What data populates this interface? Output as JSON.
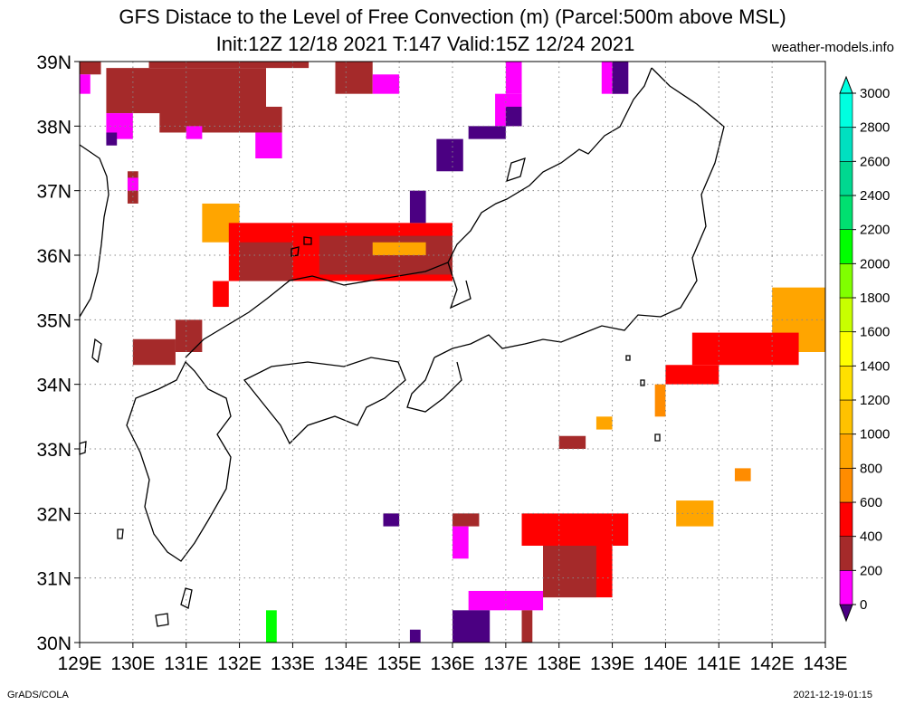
{
  "header": {
    "title": "GFS Distace to the Level of Free Convection (m) (Parcel:500m above MSL)",
    "subtitle": "Init:12Z 12/18 2021 T:147 Valid:15Z 12/24 2021",
    "site": "weather-models.info"
  },
  "footer": {
    "left": "GrADS/COLA",
    "right": "2021-12-19-01:15"
  },
  "chart_data": {
    "type": "heatmap",
    "lon_range": [
      129,
      143
    ],
    "lat_range": [
      30,
      39
    ],
    "grid": true,
    "x_ticks": [
      "129E",
      "130E",
      "131E",
      "132E",
      "133E",
      "134E",
      "135E",
      "136E",
      "137E",
      "138E",
      "139E",
      "140E",
      "141E",
      "142E",
      "143E"
    ],
    "y_ticks": [
      "30N",
      "31N",
      "32N",
      "33N",
      "34N",
      "35N",
      "36N",
      "37N",
      "38N",
      "39N"
    ],
    "colorbar": {
      "levels": [
        0,
        200,
        400,
        600,
        800,
        1000,
        1200,
        1400,
        1600,
        1800,
        2000,
        2200,
        2400,
        2600,
        2800,
        3000
      ],
      "labels": [
        "0",
        "200",
        "400",
        "600",
        "800",
        "1000",
        "1200",
        "1400",
        "1600",
        "1800",
        "2000",
        "2200",
        "2400",
        "2600",
        "2800",
        "3000"
      ],
      "colors": [
        "#4b0082",
        "#ff00ff",
        "#a52a2a",
        "#ff0000",
        "#ff8c00",
        "#ffa500",
        "#ffc200",
        "#ffe000",
        "#ffff00",
        "#c8ff00",
        "#80ff00",
        "#00ff00",
        "#00e070",
        "#00d890",
        "#00e0c0",
        "#00ffe0"
      ],
      "placement": "right"
    },
    "regions": [
      {
        "lon": [
          129.0,
          129.4
        ],
        "lat": [
          38.8,
          39.0
        ],
        "color": "#a52a2a"
      },
      {
        "lon": [
          129.0,
          129.2
        ],
        "lat": [
          38.5,
          38.8
        ],
        "color": "#ff00ff"
      },
      {
        "lon": [
          129.5,
          132.5
        ],
        "lat": [
          38.2,
          38.9
        ],
        "color": "#a52a2a"
      },
      {
        "lon": [
          130.3,
          133.3
        ],
        "lat": [
          38.9,
          39.0
        ],
        "color": "#a52a2a"
      },
      {
        "lon": [
          130.5,
          132.8
        ],
        "lat": [
          37.9,
          38.3
        ],
        "color": "#a52a2a"
      },
      {
        "lon": [
          129.5,
          130.0
        ],
        "lat": [
          37.8,
          38.2
        ],
        "color": "#ff00ff"
      },
      {
        "lon": [
          129.5,
          129.7
        ],
        "lat": [
          37.7,
          37.9
        ],
        "color": "#4b0082"
      },
      {
        "lon": [
          132.3,
          132.8
        ],
        "lat": [
          37.5,
          37.9
        ],
        "color": "#ff00ff"
      },
      {
        "lon": [
          131.0,
          131.3
        ],
        "lat": [
          37.8,
          38.0
        ],
        "color": "#ff00ff"
      },
      {
        "lon": [
          133.8,
          134.5
        ],
        "lat": [
          38.5,
          39.0
        ],
        "color": "#a52a2a"
      },
      {
        "lon": [
          134.5,
          135.0
        ],
        "lat": [
          38.5,
          38.8
        ],
        "color": "#ff00ff"
      },
      {
        "lon": [
          136.8,
          137.3
        ],
        "lat": [
          38.0,
          38.5
        ],
        "color": "#ff00ff"
      },
      {
        "lon": [
          137.0,
          137.3
        ],
        "lat": [
          38.0,
          38.3
        ],
        "color": "#4b0082"
      },
      {
        "lon": [
          137.0,
          137.3
        ],
        "lat": [
          38.5,
          39.0
        ],
        "color": "#ff00ff"
      },
      {
        "lon": [
          138.8,
          139.3
        ],
        "lat": [
          38.5,
          39.0
        ],
        "color": "#ff00ff"
      },
      {
        "lon": [
          139.0,
          139.3
        ],
        "lat": [
          38.5,
          39.0
        ],
        "color": "#4b0082"
      },
      {
        "lon": [
          136.3,
          137.0
        ],
        "lat": [
          37.8,
          38.0
        ],
        "color": "#4b0082"
      },
      {
        "lon": [
          135.7,
          136.2
        ],
        "lat": [
          37.3,
          37.8
        ],
        "color": "#4b0082"
      },
      {
        "lon": [
          129.9,
          130.1
        ],
        "lat": [
          36.8,
          37.3
        ],
        "color": "#a52a2a"
      },
      {
        "lon": [
          129.9,
          130.1
        ],
        "lat": [
          37.0,
          37.2
        ],
        "color": "#ff00ff"
      },
      {
        "lon": [
          131.3,
          132.0
        ],
        "lat": [
          36.2,
          36.8
        ],
        "color": "#ffa500"
      },
      {
        "lon": [
          131.8,
          136.0
        ],
        "lat": [
          35.6,
          36.5
        ],
        "color": "#ff0000"
      },
      {
        "lon": [
          132.0,
          133.0
        ],
        "lat": [
          35.6,
          36.2
        ],
        "color": "#a52a2a"
      },
      {
        "lon": [
          133.5,
          136.0
        ],
        "lat": [
          35.7,
          36.3
        ],
        "color": "#a52a2a"
      },
      {
        "lon": [
          134.5,
          135.5
        ],
        "lat": [
          36.0,
          36.2
        ],
        "color": "#ffa500"
      },
      {
        "lon": [
          135.2,
          135.5
        ],
        "lat": [
          36.5,
          37.0
        ],
        "color": "#4b0082"
      },
      {
        "lon": [
          131.5,
          131.8
        ],
        "lat": [
          35.2,
          35.6
        ],
        "color": "#ff0000"
      },
      {
        "lon": [
          130.0,
          130.8
        ],
        "lat": [
          34.3,
          34.7
        ],
        "color": "#a52a2a"
      },
      {
        "lon": [
          130.8,
          131.3
        ],
        "lat": [
          34.5,
          35.0
        ],
        "color": "#a52a2a"
      },
      {
        "lon": [
          142.0,
          143.0
        ],
        "lat": [
          34.5,
          35.5
        ],
        "color": "#ffa500"
      },
      {
        "lon": [
          140.5,
          142.5
        ],
        "lat": [
          34.3,
          34.8
        ],
        "color": "#ff0000"
      },
      {
        "lon": [
          140.0,
          141.0
        ],
        "lat": [
          34.0,
          34.3
        ],
        "color": "#ff0000"
      },
      {
        "lon": [
          139.8,
          140.0
        ],
        "lat": [
          33.5,
          34.0
        ],
        "color": "#ff8c00"
      },
      {
        "lon": [
          138.0,
          138.5
        ],
        "lat": [
          33.0,
          33.2
        ],
        "color": "#a52a2a"
      },
      {
        "lon": [
          138.7,
          139.0
        ],
        "lat": [
          33.3,
          33.5
        ],
        "color": "#ffa500"
      },
      {
        "lon": [
          141.3,
          141.6
        ],
        "lat": [
          32.5,
          32.7
        ],
        "color": "#ff8c00"
      },
      {
        "lon": [
          140.2,
          140.9
        ],
        "lat": [
          31.8,
          32.2
        ],
        "color": "#ffa500"
      },
      {
        "lon": [
          134.7,
          135.0
        ],
        "lat": [
          31.8,
          32.0
        ],
        "color": "#4b0082"
      },
      {
        "lon": [
          136.0,
          136.5
        ],
        "lat": [
          31.8,
          32.0
        ],
        "color": "#a52a2a"
      },
      {
        "lon": [
          136.0,
          136.3
        ],
        "lat": [
          31.3,
          31.8
        ],
        "color": "#ff00ff"
      },
      {
        "lon": [
          137.3,
          139.3
        ],
        "lat": [
          31.5,
          32.0
        ],
        "color": "#ff0000"
      },
      {
        "lon": [
          137.7,
          139.0
        ],
        "lat": [
          30.7,
          31.5
        ],
        "color": "#ff0000"
      },
      {
        "lon": [
          137.7,
          138.7
        ],
        "lat": [
          30.7,
          31.5
        ],
        "color": "#a52a2a"
      },
      {
        "lon": [
          136.3,
          137.7
        ],
        "lat": [
          30.5,
          30.8
        ],
        "color": "#ff00ff"
      },
      {
        "lon": [
          136.0,
          136.7
        ],
        "lat": [
          30.0,
          30.5
        ],
        "color": "#4b0082"
      },
      {
        "lon": [
          137.3,
          137.5
        ],
        "lat": [
          30.0,
          30.5
        ],
        "color": "#a52a2a"
      },
      {
        "lon": [
          132.5,
          132.7
        ],
        "lat": [
          30.0,
          30.5
        ],
        "color": "#00ff00"
      },
      {
        "lon": [
          135.2,
          135.4
        ],
        "lat": [
          30.0,
          30.2
        ],
        "color": "#4b0082"
      }
    ]
  }
}
